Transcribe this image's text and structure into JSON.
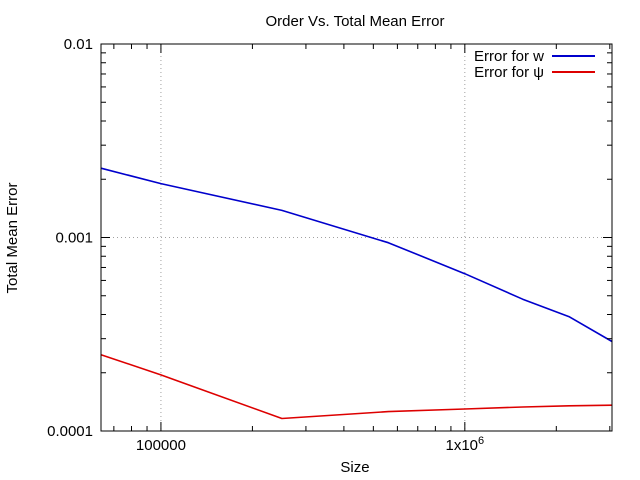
{
  "chart_data": {
    "type": "line",
    "title": "Order Vs. Total Mean Error",
    "xlabel": "Size",
    "ylabel": "Total Mean Error",
    "xscale": "log",
    "yscale": "log",
    "xlim": [
      63500,
      3050000
    ],
    "ylim": [
      0.0001,
      0.01
    ],
    "grid": true,
    "legend_position": "top-right",
    "x_ticks": [
      {
        "value": 100000,
        "label": "100000"
      },
      {
        "value": 1000000,
        "label": "1x10",
        "sup": "6"
      }
    ],
    "y_ticks": [
      {
        "value": 0.01,
        "label": "0.01"
      },
      {
        "value": 0.001,
        "label": "0.001"
      },
      {
        "value": 0.0001,
        "label": "0.0001"
      }
    ],
    "series": [
      {
        "name": "Error for w",
        "color": "#0000cc",
        "x": [
          63500,
          100000,
          250000,
          560000,
          1000000,
          1550000,
          2200000,
          3050000
        ],
        "y": [
          0.00228,
          0.0019,
          0.00138,
          0.00094,
          0.00065,
          0.00048,
          0.00039,
          0.00029
        ]
      },
      {
        "name": "Error for ψ",
        "color": "#dd0000",
        "x": [
          63500,
          100000,
          250000,
          560000,
          1000000,
          1550000,
          2200000,
          3050000
        ],
        "y": [
          0.000248,
          0.000195,
          0.000116,
          0.000126,
          0.00013,
          0.000133,
          0.000135,
          0.000136
        ]
      }
    ]
  }
}
